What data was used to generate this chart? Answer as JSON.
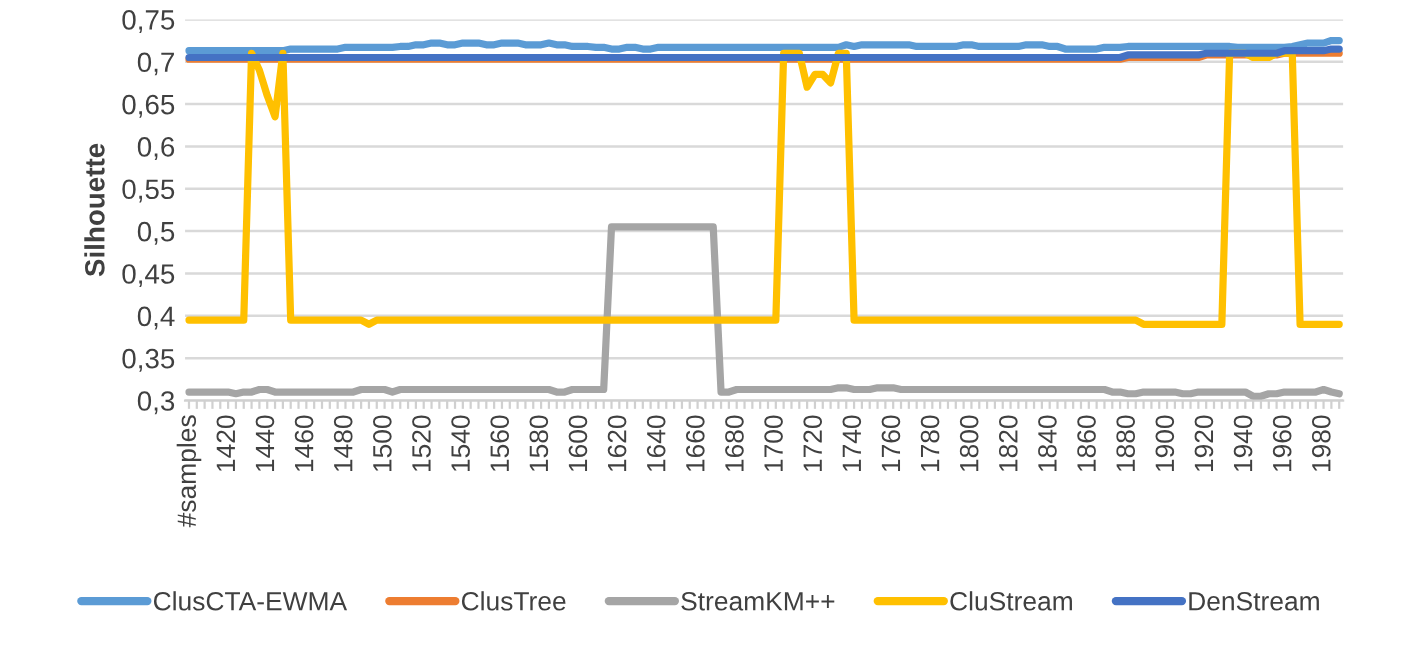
{
  "chart_data": {
    "type": "line",
    "ylabel": "Silhouette",
    "categories": [
      "#samples",
      null,
      null,
      null,
      null,
      "1420",
      null,
      null,
      null,
      null,
      "1440",
      null,
      null,
      null,
      null,
      "1460",
      null,
      null,
      null,
      null,
      "1480",
      null,
      null,
      null,
      null,
      "1500",
      null,
      null,
      null,
      null,
      "1520",
      null,
      null,
      null,
      null,
      "1540",
      null,
      null,
      null,
      null,
      "1560",
      null,
      null,
      null,
      null,
      "1580",
      null,
      null,
      null,
      null,
      "1600",
      null,
      null,
      null,
      null,
      "1620",
      null,
      null,
      null,
      null,
      "1640",
      null,
      null,
      null,
      null,
      "1660",
      null,
      null,
      null,
      null,
      "1680",
      null,
      null,
      null,
      null,
      "1700",
      null,
      null,
      null,
      null,
      "1720",
      null,
      null,
      null,
      null,
      "1740",
      null,
      null,
      null,
      null,
      "1760",
      null,
      null,
      null,
      null,
      "1780",
      null,
      null,
      null,
      null,
      "1800",
      null,
      null,
      null,
      null,
      "1820",
      null,
      null,
      null,
      null,
      "1840",
      null,
      null,
      null,
      null,
      "1860",
      null,
      null,
      null,
      null,
      "1880",
      null,
      null,
      null,
      null,
      "1900",
      null,
      null,
      null,
      null,
      "1920",
      null,
      null,
      null,
      null,
      "1940",
      null,
      null,
      null,
      null,
      "1960",
      null,
      null,
      null,
      null,
      "1980",
      null,
      null
    ],
    "series": [
      {
        "name": "ClusCTA-EWMA",
        "color": "#5b9bd5",
        "values": [
          0.713,
          0.713,
          0.713,
          0.713,
          0.713,
          0.713,
          0.713,
          0.713,
          0.713,
          0.713,
          0.713,
          0.713,
          0.713,
          0.715,
          0.715,
          0.715,
          0.715,
          0.715,
          0.715,
          0.715,
          0.717,
          0.717,
          0.717,
          0.717,
          0.717,
          0.717,
          0.717,
          0.718,
          0.718,
          0.72,
          0.72,
          0.722,
          0.722,
          0.72,
          0.72,
          0.722,
          0.722,
          0.722,
          0.72,
          0.72,
          0.722,
          0.722,
          0.722,
          0.72,
          0.72,
          0.72,
          0.722,
          0.72,
          0.72,
          0.718,
          0.718,
          0.718,
          0.717,
          0.717,
          0.715,
          0.715,
          0.717,
          0.717,
          0.715,
          0.715,
          0.717,
          0.717,
          0.717,
          0.717,
          0.717,
          0.717,
          0.717,
          0.717,
          0.717,
          0.717,
          0.717,
          0.717,
          0.717,
          0.717,
          0.717,
          0.717,
          0.717,
          0.717,
          0.717,
          0.717,
          0.717,
          0.717,
          0.717,
          0.717,
          0.72,
          0.718,
          0.72,
          0.72,
          0.72,
          0.72,
          0.72,
          0.72,
          0.72,
          0.718,
          0.718,
          0.718,
          0.718,
          0.718,
          0.718,
          0.72,
          0.72,
          0.718,
          0.718,
          0.718,
          0.718,
          0.718,
          0.718,
          0.72,
          0.72,
          0.72,
          0.718,
          0.718,
          0.715,
          0.715,
          0.715,
          0.715,
          0.715,
          0.717,
          0.717,
          0.717,
          0.718,
          0.718,
          0.718,
          0.718,
          0.718,
          0.718,
          0.718,
          0.718,
          0.718,
          0.718,
          0.718,
          0.718,
          0.718,
          0.718,
          0.717,
          0.717,
          0.717,
          0.717,
          0.717,
          0.717,
          0.717,
          0.718,
          0.72,
          0.722,
          0.722,
          0.722,
          0.725,
          0.725
        ]
      },
      {
        "name": "ClusTree",
        "color": "#ed7d31",
        "values": [
          0.703,
          0.703,
          0.703,
          0.703,
          0.703,
          0.703,
          0.703,
          0.703,
          0.703,
          0.703,
          0.703,
          0.703,
          0.703,
          0.703,
          0.703,
          0.703,
          0.703,
          0.703,
          0.703,
          0.703,
          0.703,
          0.703,
          0.703,
          0.703,
          0.703,
          0.703,
          0.703,
          0.703,
          0.703,
          0.703,
          0.703,
          0.703,
          0.703,
          0.703,
          0.703,
          0.703,
          0.703,
          0.703,
          0.703,
          0.703,
          0.703,
          0.703,
          0.703,
          0.703,
          0.703,
          0.703,
          0.703,
          0.703,
          0.703,
          0.703,
          0.703,
          0.703,
          0.703,
          0.703,
          0.703,
          0.703,
          0.703,
          0.703,
          0.703,
          0.703,
          0.703,
          0.703,
          0.703,
          0.703,
          0.703,
          0.703,
          0.703,
          0.703,
          0.703,
          0.703,
          0.703,
          0.703,
          0.703,
          0.703,
          0.703,
          0.703,
          0.703,
          0.703,
          0.703,
          0.703,
          0.703,
          0.703,
          0.703,
          0.703,
          0.703,
          0.703,
          0.703,
          0.703,
          0.703,
          0.703,
          0.703,
          0.703,
          0.703,
          0.703,
          0.703,
          0.703,
          0.703,
          0.703,
          0.703,
          0.703,
          0.703,
          0.703,
          0.703,
          0.703,
          0.703,
          0.703,
          0.703,
          0.703,
          0.703,
          0.703,
          0.703,
          0.703,
          0.703,
          0.703,
          0.703,
          0.703,
          0.703,
          0.703,
          0.703,
          0.703,
          0.705,
          0.705,
          0.705,
          0.705,
          0.705,
          0.705,
          0.705,
          0.705,
          0.705,
          0.705,
          0.708,
          0.708,
          0.708,
          0.708,
          0.708,
          0.708,
          0.708,
          0.708,
          0.708,
          0.708,
          0.71,
          0.71,
          0.71,
          0.71,
          0.71,
          0.71,
          0.71,
          0.71
        ]
      },
      {
        "name": "StreamKM++",
        "color": "#a5a5a5",
        "values": [
          0.31,
          0.31,
          0.31,
          0.31,
          0.31,
          0.31,
          0.308,
          0.31,
          0.31,
          0.313,
          0.313,
          0.31,
          0.31,
          0.31,
          0.31,
          0.31,
          0.31,
          0.31,
          0.31,
          0.31,
          0.31,
          0.31,
          0.313,
          0.313,
          0.313,
          0.313,
          0.31,
          0.313,
          0.313,
          0.313,
          0.313,
          0.313,
          0.313,
          0.313,
          0.313,
          0.313,
          0.313,
          0.313,
          0.313,
          0.313,
          0.313,
          0.313,
          0.313,
          0.313,
          0.313,
          0.313,
          0.313,
          0.31,
          0.31,
          0.313,
          0.313,
          0.313,
          0.313,
          0.313,
          0.505,
          0.505,
          0.505,
          0.505,
          0.505,
          0.505,
          0.505,
          0.505,
          0.505,
          0.505,
          0.505,
          0.505,
          0.505,
          0.505,
          0.31,
          0.31,
          0.313,
          0.313,
          0.313,
          0.313,
          0.313,
          0.313,
          0.313,
          0.313,
          0.313,
          0.313,
          0.313,
          0.313,
          0.313,
          0.315,
          0.315,
          0.313,
          0.313,
          0.313,
          0.315,
          0.315,
          0.315,
          0.313,
          0.313,
          0.313,
          0.313,
          0.313,
          0.313,
          0.313,
          0.313,
          0.313,
          0.313,
          0.313,
          0.313,
          0.313,
          0.313,
          0.313,
          0.313,
          0.313,
          0.313,
          0.313,
          0.313,
          0.313,
          0.313,
          0.313,
          0.313,
          0.313,
          0.313,
          0.313,
          0.31,
          0.31,
          0.308,
          0.308,
          0.31,
          0.31,
          0.31,
          0.31,
          0.31,
          0.308,
          0.308,
          0.31,
          0.31,
          0.31,
          0.31,
          0.31,
          0.31,
          0.31,
          0.305,
          0.305,
          0.308,
          0.308,
          0.31,
          0.31,
          0.31,
          0.31,
          0.31,
          0.313,
          0.31,
          0.308
        ]
      },
      {
        "name": "CluStream",
        "color": "#ffc000",
        "values": [
          0.395,
          0.395,
          0.395,
          0.395,
          0.395,
          0.395,
          0.395,
          0.395,
          0.71,
          0.69,
          0.66,
          0.635,
          0.71,
          0.395,
          0.395,
          0.395,
          0.395,
          0.395,
          0.395,
          0.395,
          0.395,
          0.395,
          0.395,
          0.39,
          0.395,
          0.395,
          0.395,
          0.395,
          0.395,
          0.395,
          0.395,
          0.395,
          0.395,
          0.395,
          0.395,
          0.395,
          0.395,
          0.395,
          0.395,
          0.395,
          0.395,
          0.395,
          0.395,
          0.395,
          0.395,
          0.395,
          0.395,
          0.395,
          0.395,
          0.395,
          0.395,
          0.395,
          0.395,
          0.395,
          0.395,
          0.395,
          0.395,
          0.395,
          0.395,
          0.395,
          0.395,
          0.395,
          0.395,
          0.395,
          0.395,
          0.395,
          0.395,
          0.395,
          0.395,
          0.395,
          0.395,
          0.395,
          0.395,
          0.395,
          0.395,
          0.395,
          0.71,
          0.71,
          0.71,
          0.67,
          0.685,
          0.685,
          0.675,
          0.71,
          0.71,
          0.395,
          0.395,
          0.395,
          0.395,
          0.395,
          0.395,
          0.395,
          0.395,
          0.395,
          0.395,
          0.395,
          0.395,
          0.395,
          0.395,
          0.395,
          0.395,
          0.395,
          0.395,
          0.395,
          0.395,
          0.395,
          0.395,
          0.395,
          0.395,
          0.395,
          0.395,
          0.395,
          0.395,
          0.395,
          0.395,
          0.395,
          0.395,
          0.395,
          0.395,
          0.395,
          0.395,
          0.395,
          0.39,
          0.39,
          0.39,
          0.39,
          0.39,
          0.39,
          0.39,
          0.39,
          0.39,
          0.39,
          0.39,
          0.71,
          0.71,
          0.71,
          0.705,
          0.705,
          0.705,
          0.71,
          0.71,
          0.71,
          0.39,
          0.39,
          0.39,
          0.39,
          0.39,
          0.39
        ]
      },
      {
        "name": "DenStream",
        "color": "#4472c4",
        "values": [
          0.705,
          0.705,
          0.705,
          0.705,
          0.705,
          0.705,
          0.705,
          0.705,
          0.705,
          0.705,
          0.705,
          0.705,
          0.705,
          0.705,
          0.705,
          0.705,
          0.705,
          0.705,
          0.705,
          0.705,
          0.705,
          0.705,
          0.705,
          0.705,
          0.705,
          0.705,
          0.705,
          0.705,
          0.705,
          0.705,
          0.705,
          0.705,
          0.705,
          0.705,
          0.705,
          0.705,
          0.705,
          0.705,
          0.705,
          0.705,
          0.705,
          0.705,
          0.705,
          0.705,
          0.705,
          0.705,
          0.705,
          0.705,
          0.705,
          0.705,
          0.705,
          0.705,
          0.705,
          0.705,
          0.705,
          0.705,
          0.705,
          0.705,
          0.705,
          0.705,
          0.705,
          0.705,
          0.705,
          0.705,
          0.705,
          0.705,
          0.705,
          0.705,
          0.705,
          0.705,
          0.705,
          0.705,
          0.705,
          0.705,
          0.705,
          0.705,
          0.705,
          0.705,
          0.705,
          0.705,
          0.705,
          0.705,
          0.705,
          0.705,
          0.705,
          0.705,
          0.705,
          0.705,
          0.705,
          0.705,
          0.705,
          0.705,
          0.705,
          0.705,
          0.705,
          0.705,
          0.705,
          0.705,
          0.705,
          0.705,
          0.705,
          0.705,
          0.705,
          0.705,
          0.705,
          0.705,
          0.705,
          0.705,
          0.705,
          0.705,
          0.705,
          0.705,
          0.705,
          0.705,
          0.705,
          0.705,
          0.705,
          0.705,
          0.705,
          0.705,
          0.708,
          0.708,
          0.708,
          0.708,
          0.708,
          0.708,
          0.708,
          0.708,
          0.708,
          0.708,
          0.71,
          0.71,
          0.71,
          0.71,
          0.71,
          0.71,
          0.71,
          0.71,
          0.71,
          0.71,
          0.713,
          0.713,
          0.713,
          0.713,
          0.713,
          0.713,
          0.715,
          0.715
        ]
      }
    ],
    "ylim": [
      0.3,
      0.75
    ],
    "yticks": [
      {
        "value": 0.3,
        "label": "0,3"
      },
      {
        "value": 0.35,
        "label": "0,35"
      },
      {
        "value": 0.4,
        "label": "0,4"
      },
      {
        "value": 0.45,
        "label": "0,45"
      },
      {
        "value": 0.5,
        "label": "0,5"
      },
      {
        "value": 0.55,
        "label": "0,55"
      },
      {
        "value": 0.6,
        "label": "0,6"
      },
      {
        "value": 0.65,
        "label": "0,65"
      },
      {
        "value": 0.7,
        "label": "0,7"
      },
      {
        "value": 0.75,
        "label": "0,75"
      }
    ],
    "grid": "y",
    "legend": "bottom",
    "marker": "none",
    "line_style": "solid"
  }
}
